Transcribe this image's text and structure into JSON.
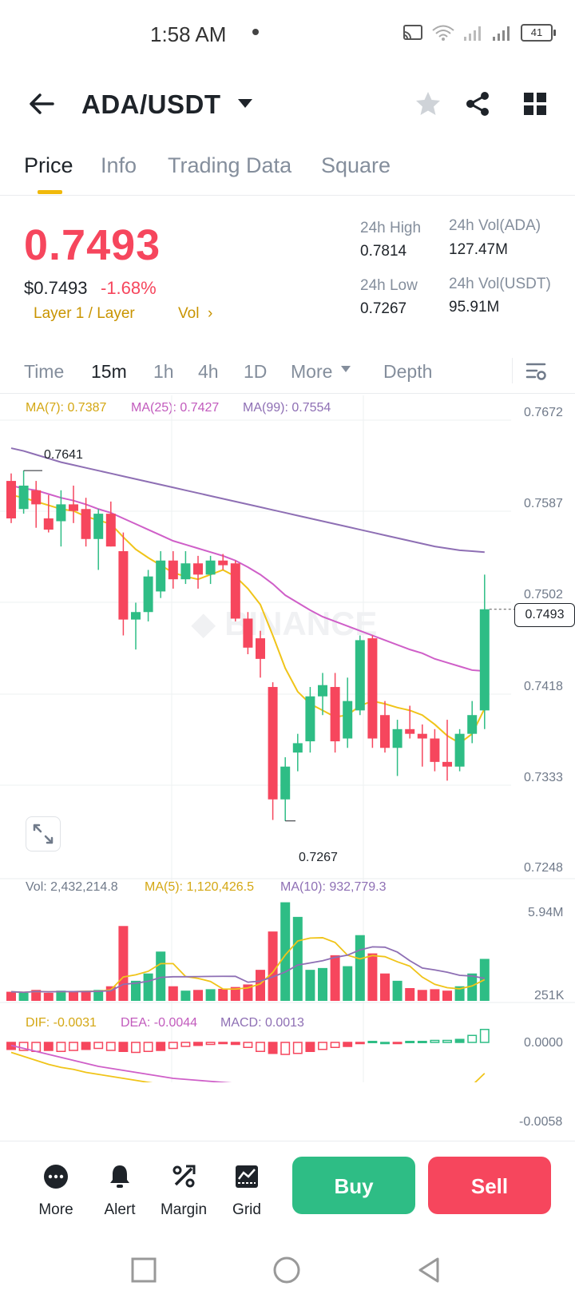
{
  "status_bar": {
    "time": "1:58 AM",
    "battery": "41"
  },
  "header": {
    "pair": "ADA/USDT"
  },
  "tabs": [
    {
      "label": "Price",
      "active": true
    },
    {
      "label": "Info",
      "active": false
    },
    {
      "label": "Trading Data",
      "active": false
    },
    {
      "label": "Square",
      "active": false
    }
  ],
  "price": {
    "last": "0.7493",
    "usd": "$0.7493",
    "change": "-1.68%",
    "tags": "Layer 1 / Layer",
    "vol_link": "Vol",
    "stats": {
      "high_label": "24h High",
      "high": "0.7814",
      "low_label": "24h Low",
      "low": "0.7267",
      "vol_ada_label": "24h Vol(ADA)",
      "vol_ada": "127.47M",
      "vol_usdt_label": "24h Vol(USDT)",
      "vol_usdt": "95.91M"
    }
  },
  "intervals": [
    "Time",
    "15m",
    "1h",
    "4h",
    "1D",
    "More",
    "Depth"
  ],
  "active_interval": "15m",
  "indicators": {
    "ma7": "MA(7): 0.7387",
    "ma25": "MA(25): 0.7427",
    "ma99": "MA(99): 0.7554",
    "vol": "Vol: 2,432,214.8",
    "vol_ma5": "MA(5): 1,120,426.5",
    "vol_ma10": "MA(10): 932,779.3",
    "dif": "DIF: -0.0031",
    "dea": "DEA: -0.0044",
    "macd": "MACD: 0.0013"
  },
  "colors": {
    "up": "#2ebd85",
    "down": "#f6465d",
    "ma7": "#f0c419",
    "ma25": "#cf5fc8",
    "ma99": "#8e6fb4",
    "accent": "#f0b90b"
  },
  "chart_data": {
    "type": "candlestick",
    "price_axis_ticks": [
      "0.7672",
      "0.7587",
      "0.7502",
      "0.7418",
      "0.7333",
      "0.7248"
    ],
    "ylim": [
      0.7248,
      0.77
    ],
    "last_price_label": "0.7493",
    "high_marker": "0.7641",
    "low_marker": "0.7267",
    "candles": [
      {
        "o": 0.763,
        "h": 0.7638,
        "l": 0.7585,
        "c": 0.759
      },
      {
        "o": 0.76,
        "h": 0.7641,
        "l": 0.7595,
        "c": 0.7625
      },
      {
        "o": 0.762,
        "h": 0.763,
        "l": 0.758,
        "c": 0.7605
      },
      {
        "o": 0.759,
        "h": 0.7615,
        "l": 0.7575,
        "c": 0.7578
      },
      {
        "o": 0.7587,
        "h": 0.762,
        "l": 0.756,
        "c": 0.7605
      },
      {
        "o": 0.7605,
        "h": 0.7625,
        "l": 0.7585,
        "c": 0.7598
      },
      {
        "o": 0.76,
        "h": 0.7612,
        "l": 0.756,
        "c": 0.7568
      },
      {
        "o": 0.7568,
        "h": 0.76,
        "l": 0.7535,
        "c": 0.7595
      },
      {
        "o": 0.7595,
        "h": 0.7608,
        "l": 0.756,
        "c": 0.756
      },
      {
        "o": 0.7555,
        "h": 0.7575,
        "l": 0.7465,
        "c": 0.7482
      },
      {
        "o": 0.7482,
        "h": 0.75,
        "l": 0.745,
        "c": 0.749
      },
      {
        "o": 0.749,
        "h": 0.7535,
        "l": 0.748,
        "c": 0.7528
      },
      {
        "o": 0.7512,
        "h": 0.7555,
        "l": 0.7505,
        "c": 0.7545
      },
      {
        "o": 0.7545,
        "h": 0.7555,
        "l": 0.7515,
        "c": 0.7525
      },
      {
        "o": 0.7525,
        "h": 0.7555,
        "l": 0.752,
        "c": 0.7542
      },
      {
        "o": 0.7542,
        "h": 0.755,
        "l": 0.7515,
        "c": 0.753
      },
      {
        "o": 0.753,
        "h": 0.755,
        "l": 0.752,
        "c": 0.7545
      },
      {
        "o": 0.7545,
        "h": 0.7552,
        "l": 0.7535,
        "c": 0.754
      },
      {
        "o": 0.7542,
        "h": 0.7545,
        "l": 0.748,
        "c": 0.7483
      },
      {
        "o": 0.7483,
        "h": 0.749,
        "l": 0.7445,
        "c": 0.7452
      },
      {
        "o": 0.7462,
        "h": 0.747,
        "l": 0.742,
        "c": 0.744
      },
      {
        "o": 0.741,
        "h": 0.7415,
        "l": 0.7268,
        "c": 0.729
      },
      {
        "o": 0.729,
        "h": 0.7335,
        "l": 0.7267,
        "c": 0.7325
      },
      {
        "o": 0.734,
        "h": 0.736,
        "l": 0.732,
        "c": 0.735
      },
      {
        "o": 0.7352,
        "h": 0.741,
        "l": 0.734,
        "c": 0.74
      },
      {
        "o": 0.74,
        "h": 0.7425,
        "l": 0.738,
        "c": 0.7412
      },
      {
        "o": 0.741,
        "h": 0.7425,
        "l": 0.734,
        "c": 0.7352
      },
      {
        "o": 0.7355,
        "h": 0.742,
        "l": 0.7345,
        "c": 0.7395
      },
      {
        "o": 0.7385,
        "h": 0.7465,
        "l": 0.738,
        "c": 0.746
      },
      {
        "o": 0.7462,
        "h": 0.7465,
        "l": 0.7345,
        "c": 0.7355
      },
      {
        "o": 0.738,
        "h": 0.7395,
        "l": 0.734,
        "c": 0.7345
      },
      {
        "o": 0.7345,
        "h": 0.7375,
        "l": 0.7315,
        "c": 0.7365
      },
      {
        "o": 0.7365,
        "h": 0.739,
        "l": 0.7355,
        "c": 0.736
      },
      {
        "o": 0.736,
        "h": 0.737,
        "l": 0.7325,
        "c": 0.7355
      },
      {
        "o": 0.7355,
        "h": 0.7365,
        "l": 0.732,
        "c": 0.733
      },
      {
        "o": 0.733,
        "h": 0.7375,
        "l": 0.731,
        "c": 0.7325
      },
      {
        "o": 0.7325,
        "h": 0.7365,
        "l": 0.732,
        "c": 0.736
      },
      {
        "o": 0.736,
        "h": 0.7395,
        "l": 0.735,
        "c": 0.738
      },
      {
        "o": 0.7385,
        "h": 0.753,
        "l": 0.7365,
        "c": 0.7493
      }
    ],
    "ma7": [
      0.7615,
      0.7612,
      0.7608,
      0.7604,
      0.76,
      0.7598,
      0.7592,
      0.7588,
      0.7584,
      0.757,
      0.7557,
      0.7548,
      0.754,
      0.7532,
      0.7528,
      0.7525,
      0.753,
      0.7535,
      0.7528,
      0.7515,
      0.7498,
      0.7465,
      0.743,
      0.7405,
      0.7392,
      0.7385,
      0.7378,
      0.738,
      0.739,
      0.7395,
      0.7392,
      0.7388,
      0.7385,
      0.738,
      0.737,
      0.7358,
      0.735,
      0.736,
      0.7387
    ],
    "ma25": [
      0.7625,
      0.7622,
      0.762,
      0.7616,
      0.7612,
      0.7609,
      0.7605,
      0.76,
      0.7596,
      0.759,
      0.7584,
      0.7578,
      0.7572,
      0.7566,
      0.7562,
      0.7558,
      0.7554,
      0.755,
      0.7545,
      0.7538,
      0.753,
      0.752,
      0.7508,
      0.75,
      0.7492,
      0.7485,
      0.748,
      0.7475,
      0.747,
      0.7465,
      0.746,
      0.7455,
      0.745,
      0.7446,
      0.744,
      0.7436,
      0.7432,
      0.7428,
      0.7427
    ],
    "ma99": [
      0.7665,
      0.7662,
      0.7658,
      0.7654,
      0.765,
      0.7647,
      0.7644,
      0.7641,
      0.7638,
      0.7635,
      0.7632,
      0.7629,
      0.7626,
      0.7623,
      0.762,
      0.7617,
      0.7614,
      0.7611,
      0.7608,
      0.7605,
      0.7602,
      0.7599,
      0.7596,
      0.7593,
      0.759,
      0.7587,
      0.7584,
      0.7581,
      0.7578,
      0.7575,
      0.7572,
      0.7569,
      0.7566,
      0.7563,
      0.756,
      0.7558,
      0.7556,
      0.7555,
      0.7554
    ],
    "volume_axis_ticks": [
      "5.94M",
      "251K"
    ],
    "volumes": [
      0.25,
      0.22,
      0.3,
      0.22,
      0.28,
      0.25,
      0.27,
      0.3,
      0.4,
      2.05,
      0.55,
      0.75,
      1.35,
      0.4,
      0.28,
      0.3,
      0.32,
      0.33,
      0.38,
      0.45,
      0.85,
      1.9,
      2.7,
      2.3,
      0.85,
      0.9,
      1.25,
      0.95,
      1.8,
      1.3,
      0.75,
      0.55,
      0.35,
      0.3,
      0.32,
      0.28,
      0.4,
      0.75,
      1.15
    ],
    "vol_ylim": [
      0,
      2.8
    ],
    "macd_axis_ticks": [
      "0.0000",
      "-0.0058"
    ],
    "macd_hist": [
      -0.0007,
      -0.0008,
      -0.0009,
      -0.0008,
      -0.0009,
      -0.0008,
      -0.0007,
      -0.0006,
      -0.0008,
      -0.0009,
      -0.001,
      -0.0009,
      -0.0008,
      -0.0006,
      -0.0004,
      -0.0003,
      -0.0002,
      -0.0001,
      -0.0002,
      -0.0005,
      -0.0009,
      -0.0011,
      -0.0012,
      -0.0011,
      -0.0009,
      -0.0007,
      -0.0005,
      -0.0004,
      -0.0001,
      0.0001,
      0.0,
      -0.0001,
      0.0001,
      0.0001,
      0.0002,
      0.0002,
      0.0003,
      0.0007,
      0.0013
    ],
    "dif": [
      -0.001,
      -0.0014,
      -0.0018,
      -0.0022,
      -0.0025,
      -0.0027,
      -0.003,
      -0.0032,
      -0.0034,
      -0.0036,
      -0.0038,
      -0.004,
      -0.0042,
      -0.0043,
      -0.0043,
      -0.0042,
      -0.0042,
      -0.0043,
      -0.0045,
      -0.0048,
      -0.0052,
      -0.0058,
      -0.0064,
      -0.0068,
      -0.007,
      -0.0071,
      -0.007,
      -0.0066,
      -0.0062,
      -0.006,
      -0.0059,
      -0.0058,
      -0.0057,
      -0.0057,
      -0.0056,
      -0.0054,
      -0.005,
      -0.0043,
      -0.0031
    ],
    "dea": [
      -0.0003,
      -0.0006,
      -0.0009,
      -0.0012,
      -0.0015,
      -0.0018,
      -0.0021,
      -0.0024,
      -0.0026,
      -0.0028,
      -0.003,
      -0.0032,
      -0.0034,
      -0.0036,
      -0.0037,
      -0.0038,
      -0.0039,
      -0.004,
      -0.0041,
      -0.0043,
      -0.0045,
      -0.0048,
      -0.0051,
      -0.0054,
      -0.0056,
      -0.0058,
      -0.006,
      -0.006,
      -0.006,
      -0.0059,
      -0.0059,
      -0.0059,
      -0.0058,
      -0.0058,
      -0.0058,
      -0.0056,
      -0.0054,
      -0.005,
      -0.0044
    ],
    "macd_ylim": [
      -0.0072,
      0.002
    ]
  },
  "bottom_bar": {
    "more": "More",
    "alert": "Alert",
    "margin": "Margin",
    "grid": "Grid",
    "buy": "Buy",
    "sell": "Sell"
  }
}
